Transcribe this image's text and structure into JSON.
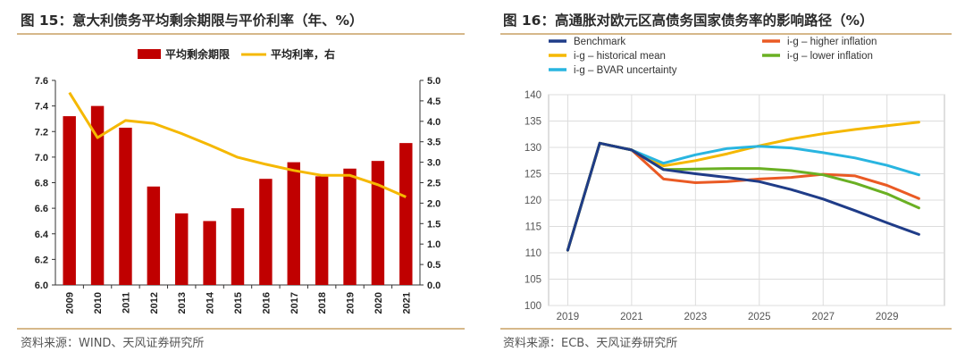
{
  "panels": {
    "left": {
      "title": "图 15：意大利债务平均剩余期限与平价利率（年、%）",
      "source": "资料来源：WIND、天风证券研究所"
    },
    "right": {
      "title": "图 16：高通胀对欧元区高债务国家债务率的影响路径（%）",
      "source": "资料来源：ECB、天风证券研究所"
    }
  },
  "colors": {
    "rule": "#c9a063",
    "bar": "#c00000",
    "avg_rate": "#f5b800",
    "benchmark": "#1f3c88",
    "historical_mean": "#f5b800",
    "bvar": "#29b5e0",
    "higher_inflation": "#ea5a24",
    "lower_inflation": "#6ab023"
  },
  "chart_data": [
    {
      "type": "bar",
      "categories": [
        "2009",
        "2010",
        "2011",
        "2012",
        "2013",
        "2014",
        "2015",
        "2016",
        "2017",
        "2018",
        "2019",
        "2020",
        "2021"
      ],
      "series": [
        {
          "name": "平均剩余期限",
          "type": "bar",
          "axis": "left",
          "values": [
            7.32,
            7.4,
            7.23,
            6.77,
            6.56,
            6.5,
            6.6,
            6.83,
            6.96,
            6.85,
            6.91,
            6.97,
            7.11
          ]
        },
        {
          "name": "平均利率，右",
          "type": "line",
          "axis": "right",
          "values": [
            4.7,
            3.6,
            4.02,
            3.95,
            3.7,
            3.42,
            3.12,
            2.95,
            2.8,
            2.68,
            2.68,
            2.45,
            2.15
          ]
        }
      ],
      "ylim": [
        6.0,
        7.6
      ],
      "yticks": [
        "6.0",
        "6.2",
        "6.4",
        "6.6",
        "6.8",
        "7.0",
        "7.2",
        "7.4",
        "7.6"
      ],
      "y2lim": [
        0.0,
        5.0
      ],
      "y2ticks": [
        "0.0",
        "0.5",
        "1.0",
        "1.5",
        "2.0",
        "2.5",
        "3.0",
        "3.5",
        "4.0",
        "4.5",
        "5.0"
      ],
      "legend_position": "top",
      "grid": false
    },
    {
      "type": "line",
      "x": [
        2019,
        2020,
        2021,
        2022,
        2023,
        2024,
        2025,
        2026,
        2027,
        2028,
        2029,
        2030
      ],
      "xticks": [
        "2019",
        "2021",
        "2023",
        "2025",
        "2027",
        "2029"
      ],
      "ylim": [
        100,
        140
      ],
      "yticks": [
        "100",
        "105",
        "110",
        "115",
        "120",
        "125",
        "130",
        "135",
        "140"
      ],
      "legend_position": "top",
      "grid": true,
      "series": [
        {
          "name": "Benchmark",
          "values": [
            110.5,
            130.8,
            129.5,
            125.8,
            125.0,
            124.3,
            123.5,
            122.0,
            120.2,
            118.0,
            115.7,
            113.5
          ]
        },
        {
          "name": "i-g – historical mean",
          "values": [
            110.5,
            130.8,
            129.5,
            126.5,
            127.5,
            128.8,
            130.3,
            131.6,
            132.6,
            133.4,
            134.1,
            134.8
          ]
        },
        {
          "name": "i-g – BVAR uncertainty",
          "values": [
            110.5,
            130.8,
            129.5,
            127.0,
            128.6,
            129.8,
            130.2,
            129.9,
            129.0,
            128.0,
            126.6,
            124.8
          ]
        },
        {
          "name": "i-g – higher inflation",
          "values": [
            110.5,
            130.8,
            129.5,
            124.0,
            123.3,
            123.5,
            124.0,
            124.3,
            124.9,
            124.6,
            122.8,
            120.3
          ]
        },
        {
          "name": "i-g – lower inflation",
          "values": [
            110.5,
            130.8,
            129.5,
            125.8,
            125.9,
            126.0,
            126.0,
            125.6,
            124.8,
            123.2,
            121.2,
            118.5
          ]
        }
      ],
      "legend_order": [
        "Benchmark",
        "i-g – historical mean",
        "i-g – BVAR uncertainty",
        "i-g – higher inflation",
        "i-g – lower inflation"
      ]
    }
  ]
}
